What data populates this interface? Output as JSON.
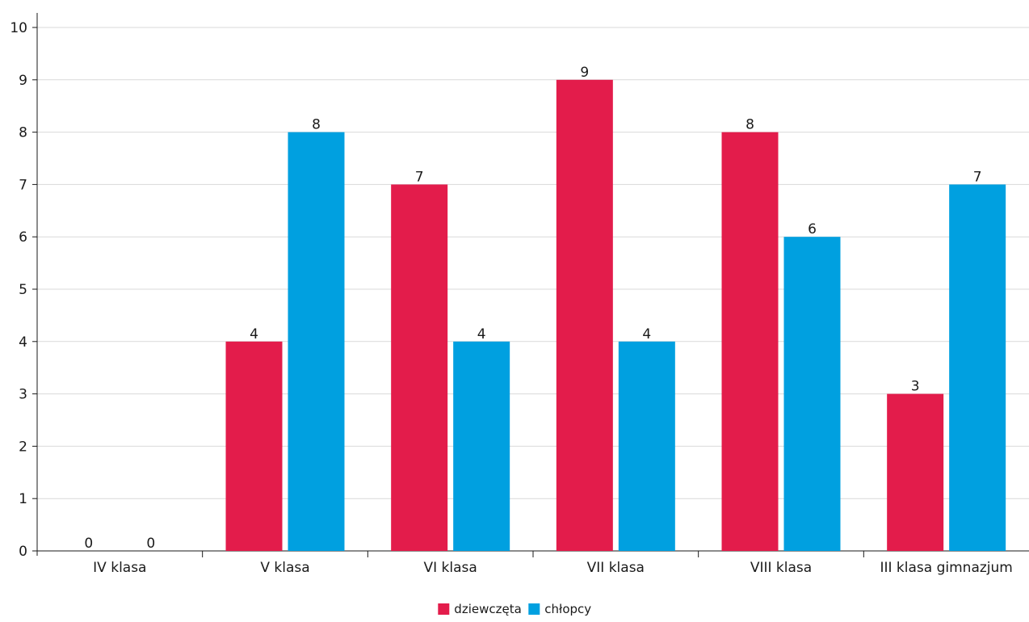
{
  "chart_data": {
    "type": "bar",
    "categories": [
      "IV klasa",
      "V klasa",
      "VI klasa",
      "VII klasa",
      "VIII klasa",
      "III klasa gimnazjum"
    ],
    "series": [
      {
        "name": "dziewczęta",
        "color": "#e31c4b",
        "values": [
          0,
          4,
          7,
          9,
          8,
          3
        ]
      },
      {
        "name": "chłopcy",
        "color": "#00a0e0",
        "values": [
          0,
          8,
          4,
          4,
          6,
          7
        ]
      }
    ],
    "ylim": [
      0,
      10
    ],
    "yticks": [
      0,
      1,
      2,
      3,
      4,
      5,
      6,
      7,
      8,
      9,
      10
    ],
    "grid": true,
    "data_labels": true,
    "legend_position": "bottom-center"
  }
}
